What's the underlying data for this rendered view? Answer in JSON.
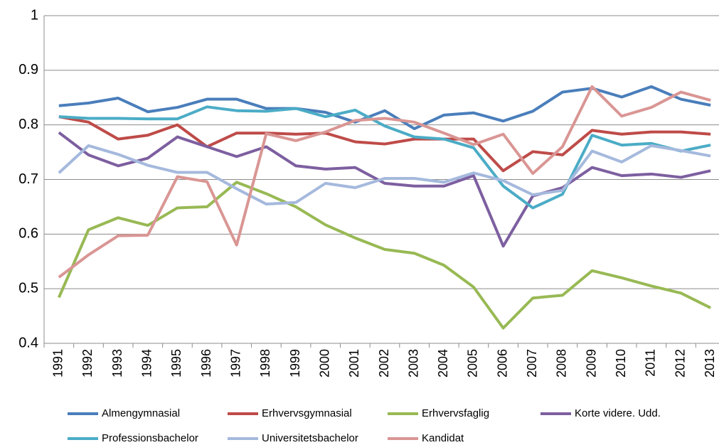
{
  "chart_data": {
    "type": "line",
    "categories": [
      "1991",
      "1992",
      "1993",
      "1994",
      "1995",
      "1996",
      "1997",
      "1998",
      "1999",
      "2000",
      "2001",
      "2002",
      "2003",
      "2004",
      "2005",
      "2006",
      "2007",
      "2008",
      "2009",
      "2010",
      "2011",
      "2012",
      "2013"
    ],
    "series": [
      {
        "name": "Almengymnasial",
        "color": "#4a7ebb",
        "values": [
          0.835,
          0.84,
          0.849,
          0.824,
          0.832,
          0.847,
          0.847,
          0.83,
          0.83,
          0.823,
          0.805,
          0.826,
          0.793,
          0.818,
          0.822,
          0.807,
          0.825,
          0.86,
          0.867,
          0.851,
          0.87,
          0.847,
          0.836
        ]
      },
      {
        "name": "Erhvervsgymnasial",
        "color": "#be4b48",
        "values": [
          0.815,
          0.805,
          0.774,
          0.781,
          0.8,
          0.76,
          0.785,
          0.785,
          0.783,
          0.785,
          0.769,
          0.765,
          0.774,
          0.774,
          0.774,
          0.716,
          0.751,
          0.745,
          0.79,
          0.783,
          0.787,
          0.787,
          0.783
        ]
      },
      {
        "name": "Erhvervsfaglig",
        "color": "#98b954",
        "values": [
          0.484,
          0.608,
          0.63,
          0.616,
          0.648,
          0.65,
          0.695,
          0.674,
          0.65,
          0.617,
          0.593,
          0.572,
          0.565,
          0.543,
          0.503,
          0.428,
          0.483,
          0.488,
          0.533,
          0.52,
          0.505,
          0.492,
          0.465
        ]
      },
      {
        "name": "Korte videre. Udd.",
        "color": "#7d5fa0",
        "values": [
          0.786,
          0.745,
          0.725,
          0.739,
          0.778,
          0.76,
          0.742,
          0.76,
          0.725,
          0.719,
          0.722,
          0.693,
          0.688,
          0.688,
          0.707,
          0.578,
          0.67,
          0.685,
          0.722,
          0.707,
          0.71,
          0.704,
          0.716
        ]
      },
      {
        "name": "Professionsbachelor",
        "color": "#4bacc6",
        "values": [
          0.815,
          0.812,
          0.812,
          0.811,
          0.811,
          0.833,
          0.826,
          0.825,
          0.83,
          0.815,
          0.827,
          0.798,
          0.778,
          0.774,
          0.758,
          0.688,
          0.648,
          0.673,
          0.781,
          0.763,
          0.766,
          0.752,
          0.763
        ]
      },
      {
        "name": "Universitetsbachelor",
        "color": "#a5b9dd",
        "values": [
          0.712,
          0.762,
          0.746,
          0.726,
          0.713,
          0.713,
          0.683,
          0.655,
          0.658,
          0.693,
          0.685,
          0.702,
          0.702,
          0.695,
          0.712,
          0.698,
          0.672,
          0.68,
          0.752,
          0.732,
          0.762,
          0.753,
          0.743
        ]
      },
      {
        "name": "Kandidat",
        "color": "#d99694",
        "values": [
          0.521,
          0.562,
          0.597,
          0.598,
          0.705,
          0.696,
          0.58,
          0.784,
          0.771,
          0.787,
          0.808,
          0.812,
          0.805,
          0.785,
          0.764,
          0.783,
          0.711,
          0.76,
          0.87,
          0.816,
          0.832,
          0.86,
          0.845
        ]
      }
    ],
    "ylim": [
      0.4,
      1
    ],
    "yticks": [
      0.4,
      0.5,
      0.6,
      0.7,
      0.8,
      0.9,
      1
    ],
    "grid": true,
    "legend": "bottom"
  }
}
